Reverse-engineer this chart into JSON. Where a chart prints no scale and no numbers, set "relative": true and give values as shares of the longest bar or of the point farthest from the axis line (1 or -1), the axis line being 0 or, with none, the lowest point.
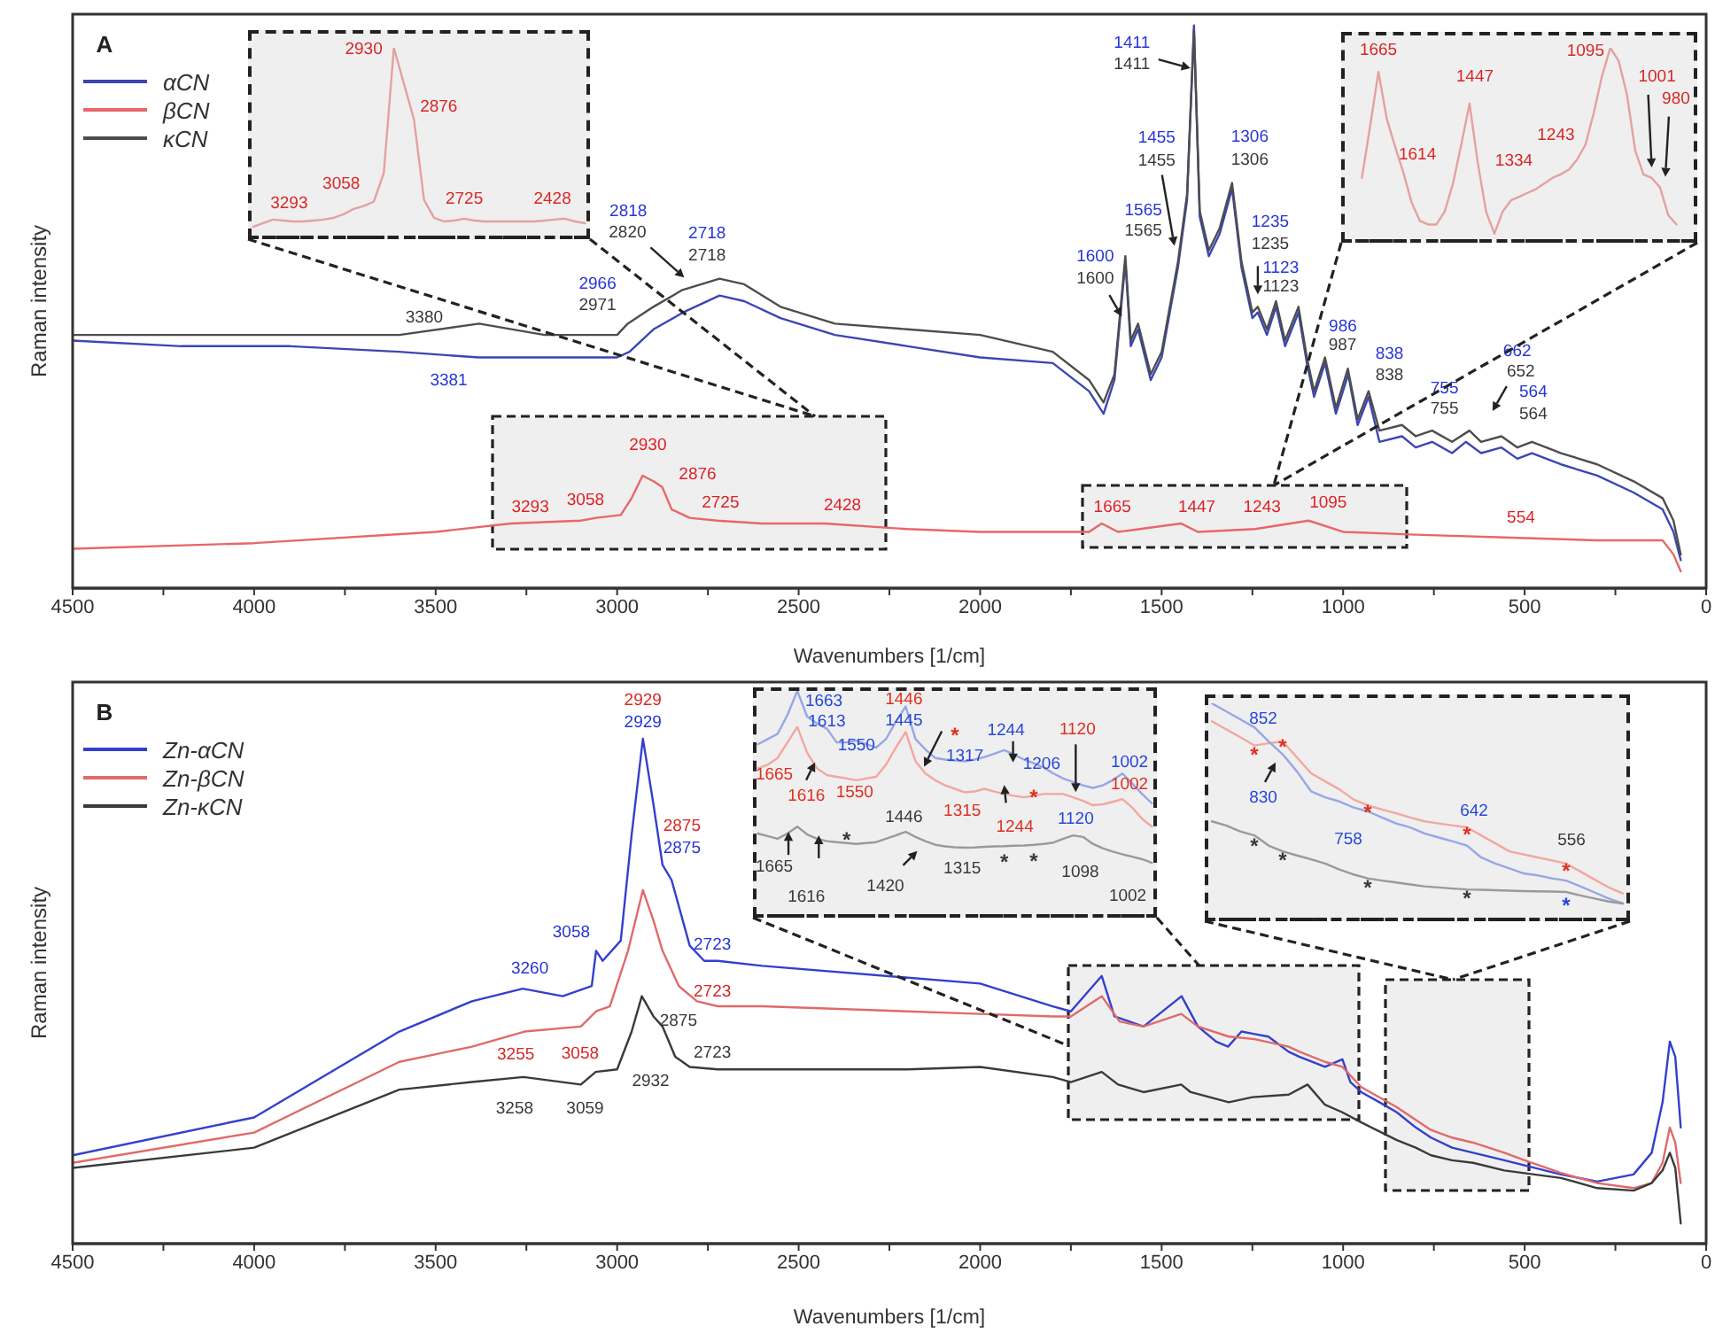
{
  "chart_data": [
    {
      "type": "line",
      "title": "A",
      "xlabel": "Wavenumbers [1/cm]",
      "ylabel": "Raman intensity",
      "relative": true,
      "xlim": [
        4500,
        0
      ],
      "legend": "top left",
      "xticks": [
        4500,
        {
          "value": 4250,
          "label": null
        },
        4000,
        {
          "value": 3750,
          "label": null
        },
        3500,
        {
          "value": 3250,
          "label": null
        },
        3000,
        {
          "value": 2750,
          "label": null
        },
        2500,
        {
          "value": 2250,
          "label": null
        },
        2000,
        {
          "value": 1750,
          "label": null
        },
        1500,
        {
          "value": 1250,
          "label": null
        },
        1000,
        {
          "value": 750,
          "label": null
        },
        500,
        {
          "value": 250,
          "label": null
        },
        0
      ],
      "series": [
        {
          "name": "αCN",
          "color": "#3b46b5",
          "x": [
            4500,
            4200,
            3900,
            3600,
            3381,
            3200,
            3000,
            2966,
            2900,
            2818,
            2718,
            2650,
            2550,
            2400,
            2200,
            2000,
            1800,
            1700,
            1660,
            1630,
            1600,
            1585,
            1565,
            1530,
            1500,
            1455,
            1430,
            1411,
            1395,
            1370,
            1340,
            1306,
            1280,
            1250,
            1235,
            1210,
            1185,
            1160,
            1123,
            1100,
            1080,
            1050,
            1020,
            986,
            960,
            930,
            900,
            838,
            800,
            755,
            700,
            662,
            620,
            564,
            520,
            480,
            400,
            300,
            200,
            120,
            90,
            70
          ],
          "values": [
            0.44,
            0.43,
            0.43,
            0.42,
            0.41,
            0.41,
            0.41,
            0.42,
            0.46,
            0.49,
            0.52,
            0.51,
            0.48,
            0.45,
            0.43,
            0.41,
            0.4,
            0.35,
            0.31,
            0.37,
            0.58,
            0.43,
            0.46,
            0.37,
            0.41,
            0.57,
            0.69,
            1.0,
            0.66,
            0.59,
            0.63,
            0.71,
            0.57,
            0.48,
            0.49,
            0.45,
            0.5,
            0.43,
            0.49,
            0.4,
            0.34,
            0.4,
            0.31,
            0.38,
            0.29,
            0.34,
            0.26,
            0.27,
            0.25,
            0.26,
            0.24,
            0.26,
            0.24,
            0.25,
            0.23,
            0.24,
            0.22,
            0.2,
            0.17,
            0.14,
            0.1,
            0.05
          ]
        },
        {
          "name": "βCN",
          "color": "#e8666a",
          "x": [
            4500,
            4000,
            3500,
            3293,
            3100,
            3058,
            2990,
            2960,
            2930,
            2900,
            2876,
            2850,
            2800,
            2725,
            2600,
            2428,
            2200,
            2000,
            1700,
            1665,
            1620,
            1447,
            1400,
            1243,
            1095,
            1000,
            800,
            554,
            300,
            120,
            90,
            70
          ],
          "values": [
            0.07,
            0.08,
            0.1,
            0.115,
            0.12,
            0.125,
            0.13,
            0.16,
            0.2,
            0.19,
            0.18,
            0.14,
            0.125,
            0.12,
            0.115,
            0.115,
            0.105,
            0.1,
            0.1,
            0.115,
            0.1,
            0.115,
            0.1,
            0.105,
            0.12,
            0.1,
            0.095,
            0.09,
            0.085,
            0.085,
            0.06,
            0.03
          ]
        },
        {
          "name": "κCN",
          "color": "#4d4d4d",
          "x": [
            4500,
            4200,
            3900,
            3600,
            3380,
            3200,
            3000,
            2971,
            2900,
            2820,
            2718,
            2650,
            2550,
            2400,
            2200,
            2000,
            1800,
            1700,
            1660,
            1630,
            1600,
            1585,
            1565,
            1530,
            1500,
            1455,
            1430,
            1411,
            1395,
            1370,
            1340,
            1306,
            1280,
            1250,
            1235,
            1210,
            1185,
            1160,
            1123,
            1100,
            1080,
            1050,
            1020,
            987,
            960,
            930,
            900,
            838,
            800,
            755,
            700,
            652,
            620,
            564,
            520,
            480,
            400,
            300,
            200,
            120,
            90,
            70
          ],
          "values": [
            0.45,
            0.45,
            0.45,
            0.45,
            0.47,
            0.45,
            0.45,
            0.47,
            0.5,
            0.53,
            0.55,
            0.54,
            0.5,
            0.47,
            0.46,
            0.45,
            0.42,
            0.37,
            0.33,
            0.38,
            0.59,
            0.44,
            0.47,
            0.38,
            0.42,
            0.58,
            0.7,
            0.99,
            0.67,
            0.6,
            0.64,
            0.72,
            0.58,
            0.49,
            0.5,
            0.46,
            0.51,
            0.44,
            0.5,
            0.41,
            0.35,
            0.41,
            0.32,
            0.39,
            0.3,
            0.35,
            0.28,
            0.29,
            0.27,
            0.28,
            0.26,
            0.28,
            0.26,
            0.27,
            0.25,
            0.26,
            0.24,
            0.22,
            0.19,
            0.16,
            0.12,
            0.06
          ]
        }
      ],
      "annotations": [
        "3381",
        "2966",
        "2818",
        "2718",
        "1600",
        "1565",
        "1455",
        "1411",
        "1306",
        "1235",
        "1123",
        "986",
        "838",
        "755",
        "662",
        "564",
        "3380",
        "2971",
        "2820",
        "2718",
        "1600",
        "1565",
        "1455",
        "1411",
        "1306",
        "1235",
        "1123",
        "987",
        "838",
        "755",
        "652",
        "564",
        "3293",
        "3058",
        "2930",
        "2876",
        "2725",
        "2428",
        "1665",
        "1447",
        "1243",
        "1095",
        "554"
      ]
    },
    {
      "type": "line",
      "relative": true,
      "categories": [
        null,
        null,
        null,
        null,
        null,
        null,
        null,
        null,
        null,
        null,
        null,
        null,
        null,
        null,
        null,
        null,
        null,
        null,
        null,
        null,
        null,
        null,
        null,
        null,
        null,
        null,
        null,
        null,
        null,
        null,
        null,
        null,
        null,
        null
      ],
      "series": [
        {
          "color": "#e6a0a0",
          "values": [
            0.056,
            0.075,
            0.094,
            0.089,
            0.084,
            0.084,
            0.089,
            0.094,
            0.103,
            0.122,
            0.15,
            0.165,
            0.188,
            0.339,
            1.0,
            0.811,
            0.622,
            0.198,
            0.103,
            0.084,
            0.089,
            0.099,
            0.089,
            0.084,
            0.084,
            0.084,
            0.084,
            0.084,
            0.084,
            0.089,
            0.094,
            0.099,
            0.084,
            0.075
          ]
        }
      ],
      "annotations": [
        "2930",
        "2876",
        "3058",
        "3293",
        "2725",
        "2428"
      ]
    },
    {
      "type": "line",
      "relative": true,
      "categories": [
        null,
        null,
        null,
        null,
        null,
        null,
        null,
        null,
        null,
        null,
        null,
        null,
        null,
        null,
        null,
        null,
        null,
        null,
        null,
        null,
        null,
        null,
        null,
        null,
        null,
        null,
        null,
        null,
        null,
        null,
        null,
        null,
        null,
        null,
        null,
        null,
        null,
        null,
        null,
        null,
        null,
        null,
        null
      ],
      "series": [
        {
          "color": "#e6a0a0",
          "values": [
            null,
            null,
            0.326,
            0.595,
            0.875,
            0.634,
            0.49,
            0.355,
            0.2,
            0.104,
            0.085,
            0.085,
            0.152,
            0.297,
            0.499,
            0.711,
            0.403,
            0.152,
            0.037,
            0.152,
            0.21,
            0.229,
            0.249,
            0.268,
            0.297,
            0.326,
            0.345,
            0.369,
            0.422,
            0.499,
            0.663,
            0.855,
            1.0,
            0.933,
            0.759,
            0.47,
            0.345,
            0.326,
            0.277,
            0.133,
            0.085,
            null,
            null
          ]
        }
      ],
      "annotations": [
        "1665",
        "1614",
        "1447",
        "1334",
        "1243",
        "1095",
        "1001",
        "980"
      ]
    },
    {
      "type": "line",
      "title": "B",
      "xlabel": "Wavenumbers [1/cm]",
      "ylabel": "Raman intensity",
      "relative": true,
      "xlim": [
        4500,
        0
      ],
      "legend": "top left",
      "xticks": [
        4500,
        {
          "value": 4250,
          "label": null
        },
        4000,
        {
          "value": 3750,
          "label": null
        },
        3500,
        {
          "value": 3250,
          "label": null
        },
        3000,
        {
          "value": 2750,
          "label": null
        },
        2500,
        {
          "value": 2250,
          "label": null
        },
        2000,
        {
          "value": 1750,
          "label": null
        },
        1500,
        {
          "value": 1250,
          "label": null
        },
        1000,
        {
          "value": 750,
          "label": null
        },
        500,
        {
          "value": 250,
          "label": null
        },
        0
      ],
      "series": [
        {
          "name": "Zn-αCN",
          "color": "#3340cc",
          "x": [
            4500,
            4000,
            3600,
            3400,
            3260,
            3150,
            3070,
            3058,
            3040,
            2990,
            2960,
            2929,
            2900,
            2875,
            2850,
            2800,
            2760,
            2723,
            2600,
            2000,
            1800,
            1750,
            1665,
            1630,
            1550,
            1445,
            1400,
            1350,
            1317,
            1280,
            1244,
            1206,
            1150,
            1120,
            1050,
            1002,
            980,
            950,
            900,
            852,
            800,
            758,
            700,
            642,
            556,
            500,
            400,
            300,
            200,
            150,
            120,
            100,
            85,
            70
          ],
          "values": [
            0.175,
            0.25,
            0.42,
            0.48,
            0.505,
            0.49,
            0.51,
            0.58,
            0.56,
            0.6,
            0.81,
            1.0,
            0.87,
            0.75,
            0.72,
            0.59,
            0.56,
            0.56,
            0.55,
            0.515,
            0.47,
            0.46,
            0.53,
            0.45,
            0.43,
            0.49,
            0.43,
            0.4,
            0.39,
            0.42,
            0.415,
            0.41,
            0.38,
            0.37,
            0.35,
            0.365,
            0.32,
            0.3,
            0.28,
            0.26,
            0.23,
            0.21,
            0.19,
            0.18,
            0.165,
            0.155,
            0.137,
            0.123,
            0.137,
            0.18,
            0.28,
            0.4,
            0.37,
            0.23
          ]
        },
        {
          "name": "Zn-βCN",
          "color": "#e06a6a",
          "x": [
            4500,
            4000,
            3600,
            3400,
            3255,
            3100,
            3058,
            3020,
            2970,
            2929,
            2900,
            2875,
            2830,
            2780,
            2723,
            2600,
            2000,
            1800,
            1750,
            1665,
            1616,
            1550,
            1446,
            1400,
            1315,
            1244,
            1150,
            1120,
            1050,
            1002,
            950,
            852,
            800,
            758,
            700,
            642,
            556,
            500,
            400,
            300,
            200,
            150,
            120,
            100,
            85,
            70
          ],
          "values": [
            0.16,
            0.22,
            0.36,
            0.39,
            0.42,
            0.43,
            0.46,
            0.47,
            0.58,
            0.7,
            0.64,
            0.58,
            0.51,
            0.48,
            0.47,
            0.47,
            0.455,
            0.45,
            0.45,
            0.49,
            0.44,
            0.43,
            0.455,
            0.43,
            0.41,
            0.405,
            0.39,
            0.38,
            0.36,
            0.35,
            0.31,
            0.27,
            0.245,
            0.225,
            0.21,
            0.2,
            0.18,
            0.165,
            0.14,
            0.12,
            0.11,
            0.12,
            0.16,
            0.23,
            0.2,
            0.12
          ]
        },
        {
          "name": "Zn-κCN",
          "color": "#3a3a3a",
          "x": [
            4500,
            4000,
            3600,
            3400,
            3258,
            3100,
            3059,
            3000,
            2960,
            2932,
            2900,
            2875,
            2840,
            2800,
            2723,
            2600,
            2200,
            2000,
            1800,
            1750,
            1665,
            1620,
            1550,
            1446,
            1420,
            1315,
            1250,
            1150,
            1098,
            1050,
            1002,
            950,
            852,
            800,
            758,
            700,
            642,
            556,
            400,
            300,
            200,
            150,
            120,
            100,
            85,
            70
          ],
          "values": [
            0.15,
            0.19,
            0.305,
            0.32,
            0.33,
            0.315,
            0.34,
            0.345,
            0.42,
            0.49,
            0.45,
            0.43,
            0.37,
            0.35,
            0.345,
            0.345,
            0.345,
            0.35,
            0.33,
            0.32,
            0.34,
            0.315,
            0.3,
            0.315,
            0.3,
            0.28,
            0.29,
            0.295,
            0.315,
            0.275,
            0.26,
            0.24,
            0.205,
            0.19,
            0.175,
            0.165,
            0.16,
            0.145,
            0.13,
            0.11,
            0.105,
            0.12,
            0.145,
            0.18,
            0.15,
            0.04
          ]
        }
      ],
      "annotations": [
        "3260",
        "3058",
        "2929",
        "2875",
        "2723",
        "3255",
        "3058",
        "2929",
        "2875",
        "2723",
        "3258",
        "3059",
        "2932",
        "2875",
        "2723"
      ]
    },
    {
      "type": "line",
      "relative": true,
      "categories": [
        null,
        null,
        null,
        null,
        null,
        null,
        null,
        null,
        null,
        null,
        null,
        null,
        null,
        null,
        null,
        null,
        null,
        null,
        null,
        null,
        null,
        null,
        null,
        null,
        null,
        null,
        null,
        null,
        null,
        null,
        null,
        null,
        null,
        null,
        null,
        null,
        null,
        null,
        null,
        null,
        null
      ],
      "series": [
        {
          "color": "#98a6e6",
          "values": [
            0.763,
            0.786,
            0.809,
            0.893,
            1.0,
            0.886,
            0.855,
            0.832,
            0.771,
            0.771,
            0.779,
            0.763,
            0.748,
            0.786,
            0.863,
            0.931,
            0.786,
            0.74,
            0.702,
            0.695,
            0.691,
            0.687,
            0.695,
            0.706,
            0.721,
            0.737,
            0.717,
            0.695,
            0.679,
            0.66,
            0.633,
            0.611,
            0.595,
            0.58,
            0.569,
            0.58,
            0.603,
            0.633,
            0.588,
            0.542,
            0.5
          ]
        },
        {
          "color": "#f2a7a0",
          "values": [
            0.656,
            0.672,
            0.702,
            0.771,
            0.84,
            0.725,
            0.656,
            0.626,
            0.618,
            0.611,
            0.603,
            0.611,
            0.618,
            0.672,
            0.748,
            0.817,
            0.687,
            0.633,
            0.603,
            0.58,
            0.565,
            0.549,
            0.553,
            0.565,
            0.553,
            0.542,
            0.534,
            0.527,
            0.534,
            0.542,
            0.542,
            0.542,
            0.527,
            0.511,
            0.492,
            0.496,
            0.507,
            0.519,
            0.481,
            0.431,
            0.397
          ]
        },
        {
          "color": "#9a9a9a",
          "values": [
            0.366,
            0.355,
            0.343,
            0.366,
            0.397,
            0.362,
            0.343,
            0.332,
            0.328,
            0.324,
            0.32,
            0.324,
            0.328,
            0.343,
            0.358,
            0.374,
            0.351,
            0.332,
            0.316,
            0.309,
            0.305,
            0.303,
            0.304,
            0.307,
            0.309,
            0.31,
            0.312,
            0.313,
            0.316,
            0.32,
            0.326,
            0.343,
            0.358,
            0.351,
            0.32,
            0.301,
            0.286,
            0.274,
            0.263,
            0.252,
            0.236
          ]
        }
      ],
      "annotations": [
        "1663",
        "1613",
        "1550",
        "1445",
        "1317",
        "1244",
        "1206",
        "1120",
        "1002",
        "1665",
        "1616",
        "1550",
        "1446",
        "1315",
        "1244",
        "1120",
        "1002",
        "1665",
        "1616",
        "1446",
        "1420",
        "1315",
        "1098",
        "1002",
        "*",
        "*",
        "*",
        "*",
        "*"
      ]
    },
    {
      "type": "line",
      "relative": true,
      "categories": [
        null,
        null,
        null,
        null,
        null,
        null,
        null,
        null,
        null,
        null,
        null,
        null,
        null,
        null,
        null,
        null,
        null,
        null,
        null,
        null,
        null,
        null,
        null,
        null,
        null,
        null,
        null,
        null,
        null,
        null
      ],
      "series": [
        {
          "color": "#f2a7a0",
          "values": [
            0.917,
            0.88,
            0.843,
            0.805,
            0.815,
            0.824,
            0.75,
            0.676,
            0.639,
            0.602,
            0.555,
            0.528,
            0.509,
            0.491,
            0.472,
            0.454,
            0.444,
            0.435,
            0.426,
            0.389,
            0.352,
            0.315,
            0.301,
            0.287,
            0.273,
            0.259,
            0.222,
            0.185,
            0.148,
            0.12
          ]
        },
        {
          "color": "#98a6e6",
          "values": [
            1.0,
            0.963,
            0.926,
            0.889,
            0.824,
            0.764,
            0.685,
            0.593,
            0.565,
            0.546,
            0.518,
            0.5,
            0.472,
            0.444,
            0.426,
            0.398,
            0.379,
            0.361,
            0.342,
            0.287,
            0.259,
            0.236,
            0.213,
            0.204,
            0.19,
            0.18,
            0.153,
            0.125,
            0.097,
            0.074
          ]
        },
        {
          "color": "#9a9a9a",
          "values": [
            0.454,
            0.435,
            0.407,
            0.389,
            0.342,
            0.315,
            0.296,
            0.278,
            0.259,
            0.231,
            0.208,
            0.19,
            0.18,
            0.171,
            0.162,
            0.153,
            0.148,
            0.143,
            0.139,
            0.137,
            0.135,
            0.133,
            0.131,
            0.13,
            0.129,
            0.127,
            0.111,
            0.097,
            0.083,
            0.074
          ]
        }
      ],
      "annotations": [
        "852",
        "830",
        "758",
        "642",
        "556",
        "*",
        "*",
        "*",
        "*",
        "*",
        "*",
        "*",
        "*",
        "*",
        "*"
      ]
    }
  ]
}
